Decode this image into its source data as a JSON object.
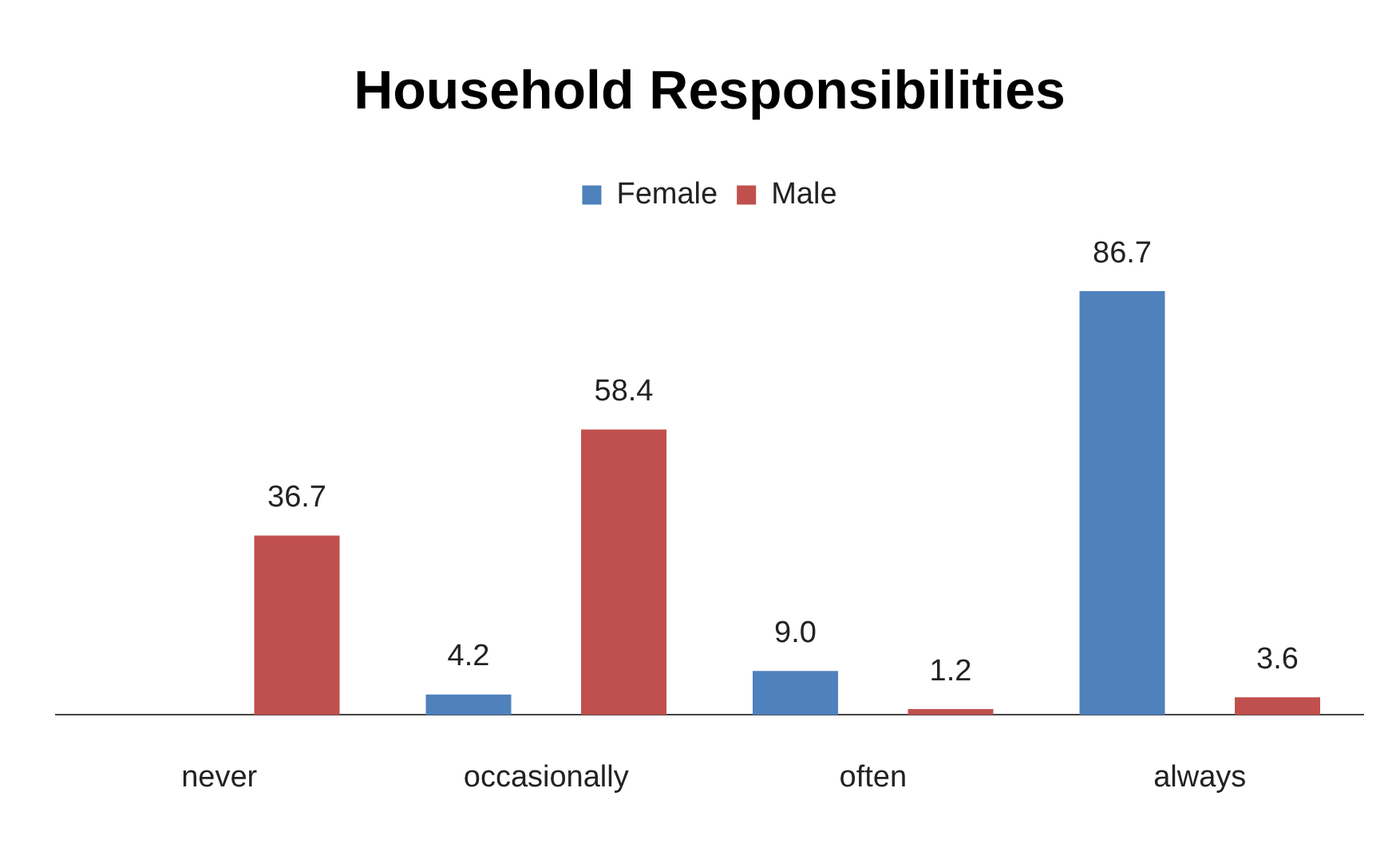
{
  "chart_data": {
    "type": "bar",
    "title": "Household Responsibilities",
    "categories": [
      "never",
      "occasionally",
      "often",
      "always"
    ],
    "series": [
      {
        "name": "Female",
        "color": "#4f81bd",
        "values": [
          null,
          4.2,
          9.0,
          86.7
        ],
        "value_labels": [
          null,
          "4.2",
          "9.0",
          "86.7"
        ]
      },
      {
        "name": "Male",
        "color": "#c0504d",
        "values": [
          36.7,
          58.4,
          1.2,
          3.6
        ],
        "value_labels": [
          "36.7",
          "58.4",
          "1.2",
          "3.6"
        ]
      }
    ],
    "legend": "top",
    "grid": false
  }
}
